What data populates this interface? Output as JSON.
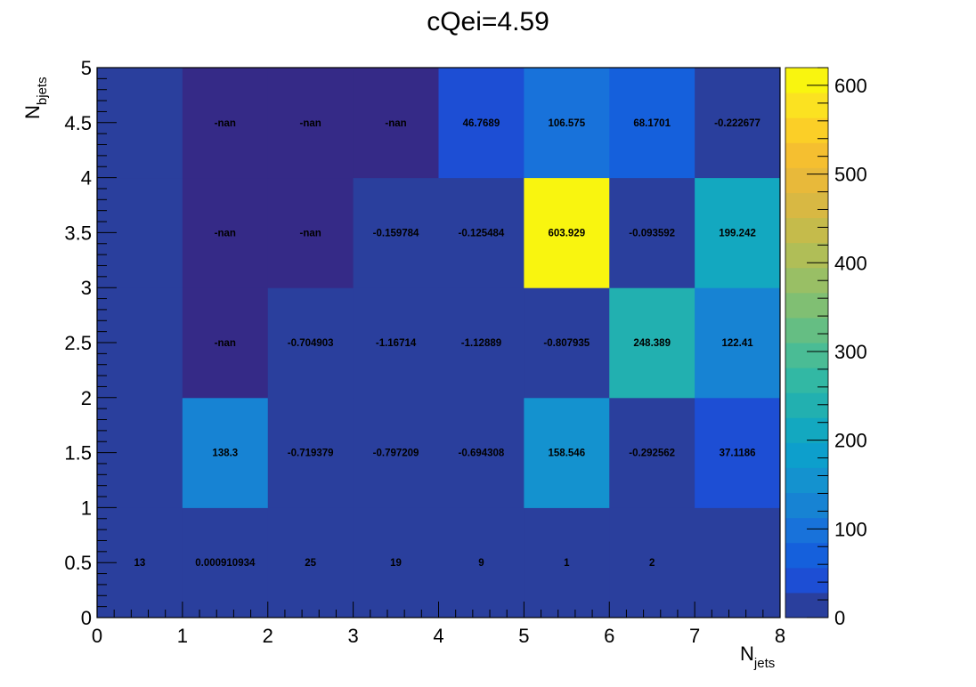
{
  "chart_data": {
    "type": "heatmap",
    "title": "cQei=4.59",
    "xlabel": {
      "main": "N",
      "sub": "jets"
    },
    "ylabel": {
      "main": "N",
      "sub": "bjets"
    },
    "xlim": [
      0,
      8
    ],
    "ylim": [
      0,
      5
    ],
    "x_tick_labels": [
      "0",
      "1",
      "2",
      "3",
      "4",
      "5",
      "6",
      "7",
      "8"
    ],
    "y_tick_labels": [
      "0",
      "0.5",
      "1",
      "1.5",
      "2",
      "2.5",
      "3",
      "3.5",
      "4",
      "4.5",
      "5"
    ],
    "x_bins": [
      0,
      1,
      2,
      3,
      4,
      5,
      6,
      7
    ],
    "y_bins": [
      0,
      1,
      2,
      3,
      4
    ],
    "cells": [
      {
        "x": 0,
        "y": 0,
        "value": 13,
        "label": "13"
      },
      {
        "x": 1,
        "y": 0,
        "value": 0.000910934,
        "label": "0.000910934"
      },
      {
        "x": 2,
        "y": 0,
        "value": 25,
        "label": "25"
      },
      {
        "x": 3,
        "y": 0,
        "value": 19,
        "label": "19"
      },
      {
        "x": 4,
        "y": 0,
        "value": 9,
        "label": "9"
      },
      {
        "x": 5,
        "y": 0,
        "value": 1,
        "label": "1"
      },
      {
        "x": 6,
        "y": 0,
        "value": 2,
        "label": "2"
      },
      {
        "x": 7,
        "y": 0,
        "value": 0,
        "label": ""
      },
      {
        "x": 0,
        "y": 1,
        "value": 0,
        "label": ""
      },
      {
        "x": 1,
        "y": 1,
        "value": 138.3,
        "label": "138.3"
      },
      {
        "x": 2,
        "y": 1,
        "value": -0.719379,
        "label": "-0.719379"
      },
      {
        "x": 3,
        "y": 1,
        "value": -0.797209,
        "label": "-0.797209"
      },
      {
        "x": 4,
        "y": 1,
        "value": -0.694308,
        "label": "-0.694308"
      },
      {
        "x": 5,
        "y": 1,
        "value": 158.546,
        "label": "158.546"
      },
      {
        "x": 6,
        "y": 1,
        "value": -0.292562,
        "label": "-0.292562"
      },
      {
        "x": 7,
        "y": 1,
        "value": 37.1186,
        "label": "37.1186"
      },
      {
        "x": 0,
        "y": 2,
        "value": 0,
        "label": ""
      },
      {
        "x": 1,
        "y": 2,
        "value": null,
        "label": "-nan"
      },
      {
        "x": 2,
        "y": 2,
        "value": -0.704903,
        "label": "-0.704903"
      },
      {
        "x": 3,
        "y": 2,
        "value": -1.16714,
        "label": "-1.16714"
      },
      {
        "x": 4,
        "y": 2,
        "value": -1.12889,
        "label": "-1.12889"
      },
      {
        "x": 5,
        "y": 2,
        "value": -0.807935,
        "label": "-0.807935"
      },
      {
        "x": 6,
        "y": 2,
        "value": 248.389,
        "label": "248.389"
      },
      {
        "x": 7,
        "y": 2,
        "value": 122.41,
        "label": "122.41"
      },
      {
        "x": 0,
        "y": 3,
        "value": 0,
        "label": ""
      },
      {
        "x": 1,
        "y": 3,
        "value": null,
        "label": "-nan"
      },
      {
        "x": 2,
        "y": 3,
        "value": null,
        "label": "-nan"
      },
      {
        "x": 3,
        "y": 3,
        "value": -0.159784,
        "label": "-0.159784"
      },
      {
        "x": 4,
        "y": 3,
        "value": -0.125484,
        "label": "-0.125484"
      },
      {
        "x": 5,
        "y": 3,
        "value": 603.929,
        "label": "603.929"
      },
      {
        "x": 6,
        "y": 3,
        "value": -0.093592,
        "label": "-0.093592"
      },
      {
        "x": 7,
        "y": 3,
        "value": 199.242,
        "label": "199.242"
      },
      {
        "x": 0,
        "y": 4,
        "value": 0,
        "label": ""
      },
      {
        "x": 1,
        "y": 4,
        "value": null,
        "label": "-nan"
      },
      {
        "x": 2,
        "y": 4,
        "value": null,
        "label": "-nan"
      },
      {
        "x": 3,
        "y": 4,
        "value": null,
        "label": "-nan"
      },
      {
        "x": 4,
        "y": 4,
        "value": 46.7689,
        "label": "46.7689"
      },
      {
        "x": 5,
        "y": 4,
        "value": 106.575,
        "label": "106.575"
      },
      {
        "x": 6,
        "y": 4,
        "value": 68.1701,
        "label": "68.1701"
      },
      {
        "x": 7,
        "y": 4,
        "value": -0.222677,
        "label": "-0.222677"
      }
    ],
    "colorbar": {
      "range": [
        0,
        620
      ],
      "tick_labels": [
        "0",
        "100",
        "200",
        "300",
        "400",
        "500",
        "600"
      ],
      "tick_values": [
        0,
        100,
        200,
        300,
        400,
        500,
        600
      ],
      "nan_color": "#352a87",
      "palette": [
        "#2a3f9d",
        "#1d4ed4",
        "#1560dc",
        "#1872da",
        "#1783d3",
        "#1492cf",
        "#0d9fcc",
        "#13a8c0",
        "#22b0b0",
        "#32b8a4",
        "#4abc95",
        "#65be83",
        "#80bf73",
        "#99bf65",
        "#b0be57",
        "#c5bb4b",
        "#d8b843",
        "#e8b93a",
        "#f5bf30",
        "#fbcf27",
        "#fbe221",
        "#f9f50f"
      ]
    }
  }
}
